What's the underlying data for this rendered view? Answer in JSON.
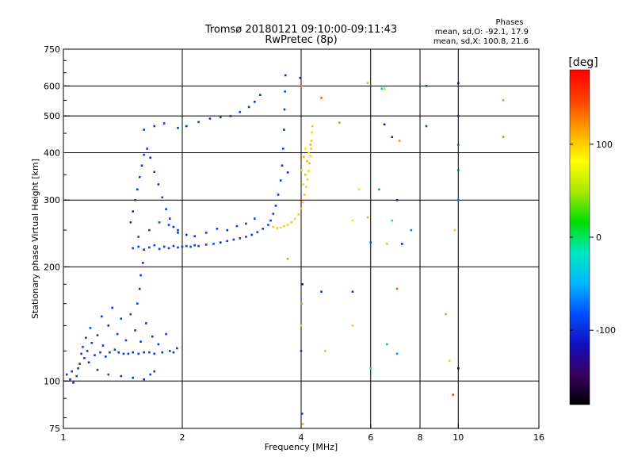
{
  "chart_data": {
    "type": "scatter",
    "title": "Tromsø 20180121 09:10:00-09:11:43",
    "subtitle": "RwPretec (8p)",
    "phases_info": {
      "title": "Phases",
      "line1": "mean, sd,O: -92.1, 17.9",
      "line2": "mean, sd,X: 100.8, 21.6"
    },
    "xlabel": "Frequency [MHz]",
    "ylabel": "Stationary phase Virtual Height [km]",
    "xscale": "log",
    "yscale": "log",
    "xlim": [
      1,
      16
    ],
    "ylim": [
      75,
      750
    ],
    "xticks": [
      1,
      2,
      4,
      6,
      8,
      10,
      16
    ],
    "yticks": [
      75,
      100,
      200,
      300,
      400,
      500,
      600,
      750
    ],
    "grid_x": [
      2,
      4,
      6,
      8,
      10
    ],
    "grid_y": [
      100,
      200,
      300,
      400,
      500,
      600
    ],
    "colorbar": {
      "label": "[deg]",
      "range": [
        -180,
        180
      ],
      "ticks": [
        -100,
        0,
        100
      ],
      "colors": [
        "#000000",
        "#3a0060",
        "#1010c0",
        "#0050ff",
        "#00b8ff",
        "#00e8c0",
        "#00dd00",
        "#a8e800",
        "#ffff00",
        "#ffa500",
        "#ff4000",
        "#ff0000"
      ]
    },
    "series": [
      {
        "mode": "O",
        "points": [
          [
            1.02,
            104,
            -95
          ],
          [
            1.04,
            101,
            -98
          ],
          [
            1.05,
            106,
            -92
          ],
          [
            1.06,
            99,
            -100
          ],
          [
            1.08,
            103,
            -90
          ],
          [
            1.09,
            108,
            -96
          ],
          [
            1.1,
            111,
            -94
          ],
          [
            1.11,
            118,
            -97
          ],
          [
            1.12,
            123,
            -91
          ],
          [
            1.13,
            115,
            -99
          ],
          [
            1.14,
            130,
            -93
          ],
          [
            1.15,
            120,
            -95
          ],
          [
            1.16,
            112,
            -101
          ],
          [
            1.17,
            138,
            -88
          ],
          [
            1.18,
            126,
            -96
          ],
          [
            1.2,
            117,
            -94
          ],
          [
            1.22,
            132,
            -98
          ],
          [
            1.24,
            119,
            -92
          ],
          [
            1.25,
            148,
            -95
          ],
          [
            1.26,
            124,
            -97
          ],
          [
            1.28,
            116,
            -93
          ],
          [
            1.3,
            140,
            -99
          ],
          [
            1.31,
            119,
            -91
          ],
          [
            1.33,
            156,
            -96
          ],
          [
            1.35,
            121,
            -95
          ],
          [
            1.37,
            133,
            -92
          ],
          [
            1.38,
            119,
            -98
          ],
          [
            1.4,
            146,
            -94
          ],
          [
            1.42,
            118,
            -96
          ],
          [
            1.44,
            128,
            -90
          ],
          [
            1.46,
            118,
            -97
          ],
          [
            1.48,
            150,
            -93
          ],
          [
            1.5,
            119,
            -95
          ],
          [
            1.52,
            136,
            -98
          ],
          [
            1.55,
            118,
            -92
          ],
          [
            1.57,
            127,
            -96
          ],
          [
            1.6,
            119,
            -94
          ],
          [
            1.62,
            142,
            -99
          ],
          [
            1.65,
            119,
            -91
          ],
          [
            1.68,
            131,
            -95
          ],
          [
            1.7,
            118,
            -97
          ],
          [
            1.74,
            125,
            -93
          ],
          [
            1.78,
            119,
            -96
          ],
          [
            1.82,
            133,
            -94
          ],
          [
            1.86,
            120,
            -98
          ],
          [
            1.9,
            119,
            -92
          ],
          [
            1.94,
            122,
            -95
          ],
          [
            1.22,
            107,
            -97
          ],
          [
            1.3,
            104,
            -93
          ],
          [
            1.4,
            103,
            -96
          ],
          [
            1.5,
            102,
            -94
          ],
          [
            1.6,
            101,
            -99
          ],
          [
            1.66,
            104,
            -91
          ],
          [
            1.7,
            106,
            -95
          ],
          [
            1.54,
            160,
            -92
          ],
          [
            1.56,
            175,
            -97
          ],
          [
            1.57,
            190,
            -94
          ],
          [
            1.59,
            205,
            -96
          ],
          [
            1.6,
            222,
            -93
          ],
          [
            1.48,
            262,
            -95
          ],
          [
            1.5,
            280,
            -98
          ],
          [
            1.52,
            300,
            -92
          ],
          [
            1.54,
            320,
            -96
          ],
          [
            1.56,
            345,
            -94
          ],
          [
            1.58,
            370,
            -99
          ],
          [
            1.6,
            395,
            -91
          ],
          [
            1.63,
            410,
            -95
          ],
          [
            1.66,
            388,
            -97
          ],
          [
            1.7,
            356,
            -93
          ],
          [
            1.74,
            330,
            -96
          ],
          [
            1.78,
            305,
            -94
          ],
          [
            1.82,
            284,
            -98
          ],
          [
            1.86,
            268,
            -92
          ],
          [
            1.9,
            255,
            -95
          ],
          [
            1.95,
            246,
            -97
          ],
          [
            1.5,
            224,
            -93
          ],
          [
            1.55,
            226,
            -96
          ],
          [
            1.6,
            222,
            -94
          ],
          [
            1.65,
            225,
            -99
          ],
          [
            1.7,
            228,
            -91
          ],
          [
            1.75,
            223,
            -95
          ],
          [
            1.8,
            226,
            -97
          ],
          [
            1.85,
            224,
            -93
          ],
          [
            1.9,
            227,
            -96
          ],
          [
            1.95,
            225,
            -94
          ],
          [
            2.0,
            226,
            -98
          ],
          [
            2.05,
            227,
            -92
          ],
          [
            2.1,
            226,
            -95
          ],
          [
            2.15,
            228,
            -97
          ],
          [
            2.2,
            227,
            -93
          ],
          [
            2.3,
            229,
            -96
          ],
          [
            2.4,
            230,
            -94
          ],
          [
            2.5,
            232,
            -99
          ],
          [
            2.6,
            234,
            -91
          ],
          [
            2.7,
            236,
            -95
          ],
          [
            2.8,
            238,
            -97
          ],
          [
            2.9,
            240,
            -93
          ],
          [
            3.0,
            243,
            -96
          ],
          [
            3.1,
            247,
            -94
          ],
          [
            3.2,
            252,
            -98
          ],
          [
            3.3,
            258,
            -92
          ],
          [
            3.35,
            265,
            -95
          ],
          [
            3.4,
            276,
            -97
          ],
          [
            3.45,
            290,
            -93
          ],
          [
            3.5,
            310,
            -96
          ],
          [
            3.55,
            338,
            -94
          ],
          [
            3.58,
            370,
            -99
          ],
          [
            3.6,
            410,
            -91
          ],
          [
            3.62,
            460,
            -95
          ],
          [
            3.63,
            520,
            -97
          ],
          [
            3.64,
            580,
            -93
          ],
          [
            3.65,
            640,
            -96
          ],
          [
            1.55,
            240,
            -90
          ],
          [
            1.65,
            250,
            -92
          ],
          [
            1.75,
            262,
            -88
          ],
          [
            1.85,
            258,
            -94
          ],
          [
            1.95,
            250,
            -96
          ],
          [
            2.05,
            243,
            -98
          ],
          [
            2.15,
            241,
            -93
          ],
          [
            2.3,
            246,
            -95
          ],
          [
            2.45,
            252,
            -91
          ],
          [
            2.6,
            250,
            -97
          ],
          [
            2.75,
            256,
            -93
          ],
          [
            2.9,
            260,
            -96
          ],
          [
            3.05,
            268,
            -94
          ],
          [
            1.6,
            460,
            -94
          ],
          [
            1.7,
            470,
            -96
          ],
          [
            1.8,
            478,
            -92
          ],
          [
            1.95,
            465,
            -95
          ],
          [
            2.05,
            470,
            -97
          ],
          [
            2.2,
            482,
            -93
          ],
          [
            2.35,
            492,
            -96
          ],
          [
            2.5,
            496,
            -94
          ],
          [
            2.65,
            500,
            -98
          ],
          [
            2.8,
            512,
            -92
          ],
          [
            2.95,
            528,
            -95
          ],
          [
            3.05,
            545,
            -97
          ],
          [
            3.15,
            568,
            -93
          ]
        ]
      },
      {
        "mode": "X",
        "points": [
          [
            3.4,
            255,
            100
          ],
          [
            3.48,
            253,
            104
          ],
          [
            3.55,
            254,
            98
          ],
          [
            3.62,
            256,
            102
          ],
          [
            3.7,
            258,
            99
          ],
          [
            3.78,
            262,
            105
          ],
          [
            3.86,
            268,
            97
          ],
          [
            3.94,
            275,
            101
          ],
          [
            4.0,
            285,
            103
          ],
          [
            4.04,
            296,
            99
          ],
          [
            4.08,
            310,
            104
          ],
          [
            4.12,
            325,
            98
          ],
          [
            4.15,
            340,
            102
          ],
          [
            4.18,
            358,
            100
          ],
          [
            4.2,
            375,
            106
          ],
          [
            4.22,
            392,
            97
          ],
          [
            4.24,
            410,
            101
          ],
          [
            4.25,
            430,
            103
          ],
          [
            4.26,
            452,
            99
          ],
          [
            4.27,
            470,
            104
          ],
          [
            4.05,
            330,
            95
          ],
          [
            4.1,
            350,
            110
          ],
          [
            4.14,
            380,
            108
          ],
          [
            4.18,
            400,
            96
          ],
          [
            4.22,
            420,
            112
          ],
          [
            4.02,
            360,
            92
          ],
          [
            4.06,
            390,
            115
          ],
          [
            4.1,
            410,
            90
          ]
        ]
      },
      {
        "mode": "scatter",
        "points": [
          [
            3.98,
            630,
            -120
          ],
          [
            4.0,
            140,
            100
          ],
          [
            4.0,
            120,
            -95
          ],
          [
            4.01,
            160,
            130
          ],
          [
            4.02,
            82,
            -100
          ],
          [
            4.02,
            600,
            120
          ],
          [
            4.03,
            180,
            -110
          ],
          [
            4.04,
            77,
            110
          ],
          [
            4.5,
            558,
            140
          ],
          [
            4.5,
            172,
            -95
          ],
          [
            4.6,
            120,
            110
          ],
          [
            5.0,
            480,
            125
          ],
          [
            5.4,
            172,
            -95
          ],
          [
            5.4,
            265,
            90
          ],
          [
            5.4,
            140,
            100
          ],
          [
            5.9,
            610,
            40
          ],
          [
            5.9,
            270,
            110
          ],
          [
            6.0,
            232,
            -80
          ],
          [
            6.0,
            108,
            -10
          ],
          [
            6.3,
            320,
            -60
          ],
          [
            6.4,
            590,
            -40
          ],
          [
            6.5,
            475,
            -130
          ],
          [
            6.5,
            590,
            50
          ],
          [
            6.6,
            125,
            -50
          ],
          [
            6.8,
            440,
            -100
          ],
          [
            6.8,
            265,
            -20
          ],
          [
            7.0,
            175,
            140
          ],
          [
            7.0,
            300,
            -110
          ],
          [
            7.1,
            430,
            120
          ],
          [
            7.0,
            118,
            -60
          ],
          [
            7.2,
            230,
            -100
          ],
          [
            7.6,
            250,
            -70
          ],
          [
            8.3,
            600,
            -90
          ],
          [
            9.3,
            150,
            120
          ],
          [
            9.5,
            113,
            100
          ],
          [
            9.7,
            92,
            150
          ],
          [
            9.8,
            250,
            100
          ],
          [
            10.0,
            610,
            -120
          ],
          [
            10.0,
            500,
            -100
          ],
          [
            10.0,
            420,
            -80
          ],
          [
            10.0,
            360,
            -75
          ],
          [
            10.0,
            300,
            -70
          ],
          [
            10.0,
            108,
            -160
          ],
          [
            13.0,
            550,
            120
          ],
          [
            13.0,
            440,
            130
          ],
          [
            8.3,
            470,
            -90
          ],
          [
            6.6,
            230,
            50
          ],
          [
            5.6,
            320,
            70
          ],
          [
            3.7,
            355,
            -100
          ],
          [
            3.7,
            210,
            40
          ]
        ]
      }
    ]
  }
}
